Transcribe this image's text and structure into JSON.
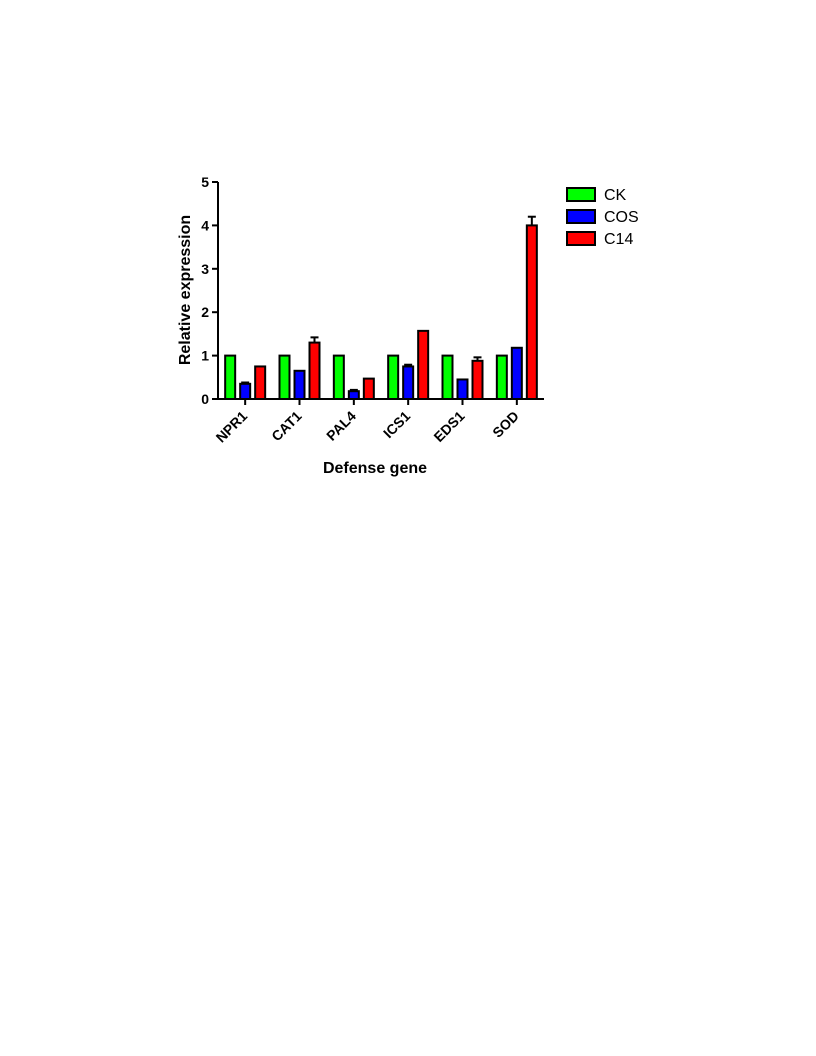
{
  "chart_data": {
    "type": "bar",
    "xlabel": "Defense gene",
    "ylabel": "Relative expression",
    "ylim": [
      0,
      5
    ],
    "yticks": [
      "0",
      "1",
      "2",
      "3",
      "4",
      "5"
    ],
    "categories": [
      "NPR1",
      "CAT1",
      "PAL4",
      "ICS1",
      "EDS1",
      "SOD"
    ],
    "series": [
      {
        "name": "CK",
        "color": "#00ff00",
        "values": [
          1.0,
          1.0,
          1.0,
          1.0,
          1.0,
          1.0
        ],
        "errors": [
          0,
          0,
          0,
          0,
          0,
          0
        ]
      },
      {
        "name": "COS",
        "color": "#0000ff",
        "values": [
          0.35,
          0.65,
          0.18,
          0.75,
          0.45,
          1.18
        ],
        "errors": [
          0.03,
          0,
          0.03,
          0.04,
          0,
          0
        ]
      },
      {
        "name": "C14",
        "color": "#ff0000",
        "values": [
          0.75,
          1.3,
          0.47,
          1.57,
          0.88,
          4.0
        ],
        "errors": [
          0,
          0.12,
          0,
          0,
          0.08,
          0.2
        ]
      }
    ],
    "grid": false,
    "legend_position": "right"
  }
}
